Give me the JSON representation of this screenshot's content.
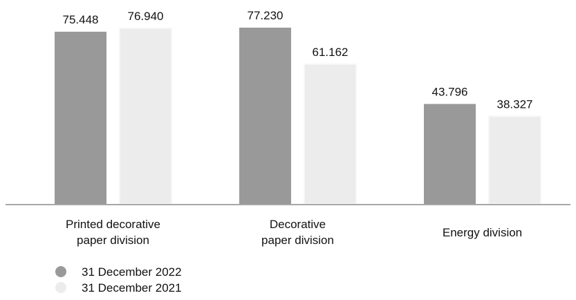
{
  "chart_data": {
    "type": "bar",
    "title": "",
    "xlabel": "",
    "ylabel": "",
    "ylim": [
      0,
      77.23
    ],
    "grid": false,
    "legend_position": "bottom-left",
    "categories": [
      [
        "Printed decorative",
        "paper division"
      ],
      [
        "Decorative",
        "paper division"
      ],
      [
        "Energy division"
      ]
    ],
    "value_labels": [
      [
        "75.448",
        "76.940"
      ],
      [
        "77.230",
        "61.162"
      ],
      [
        "43.796",
        "38.327"
      ]
    ],
    "series": [
      {
        "name": "31 December 2022",
        "color": "#999999",
        "values": [
          75.448,
          77.23,
          43.796
        ]
      },
      {
        "name": "31 December 2021",
        "color": "#ececec",
        "values": [
          76.94,
          61.162,
          38.327
        ]
      }
    ]
  }
}
